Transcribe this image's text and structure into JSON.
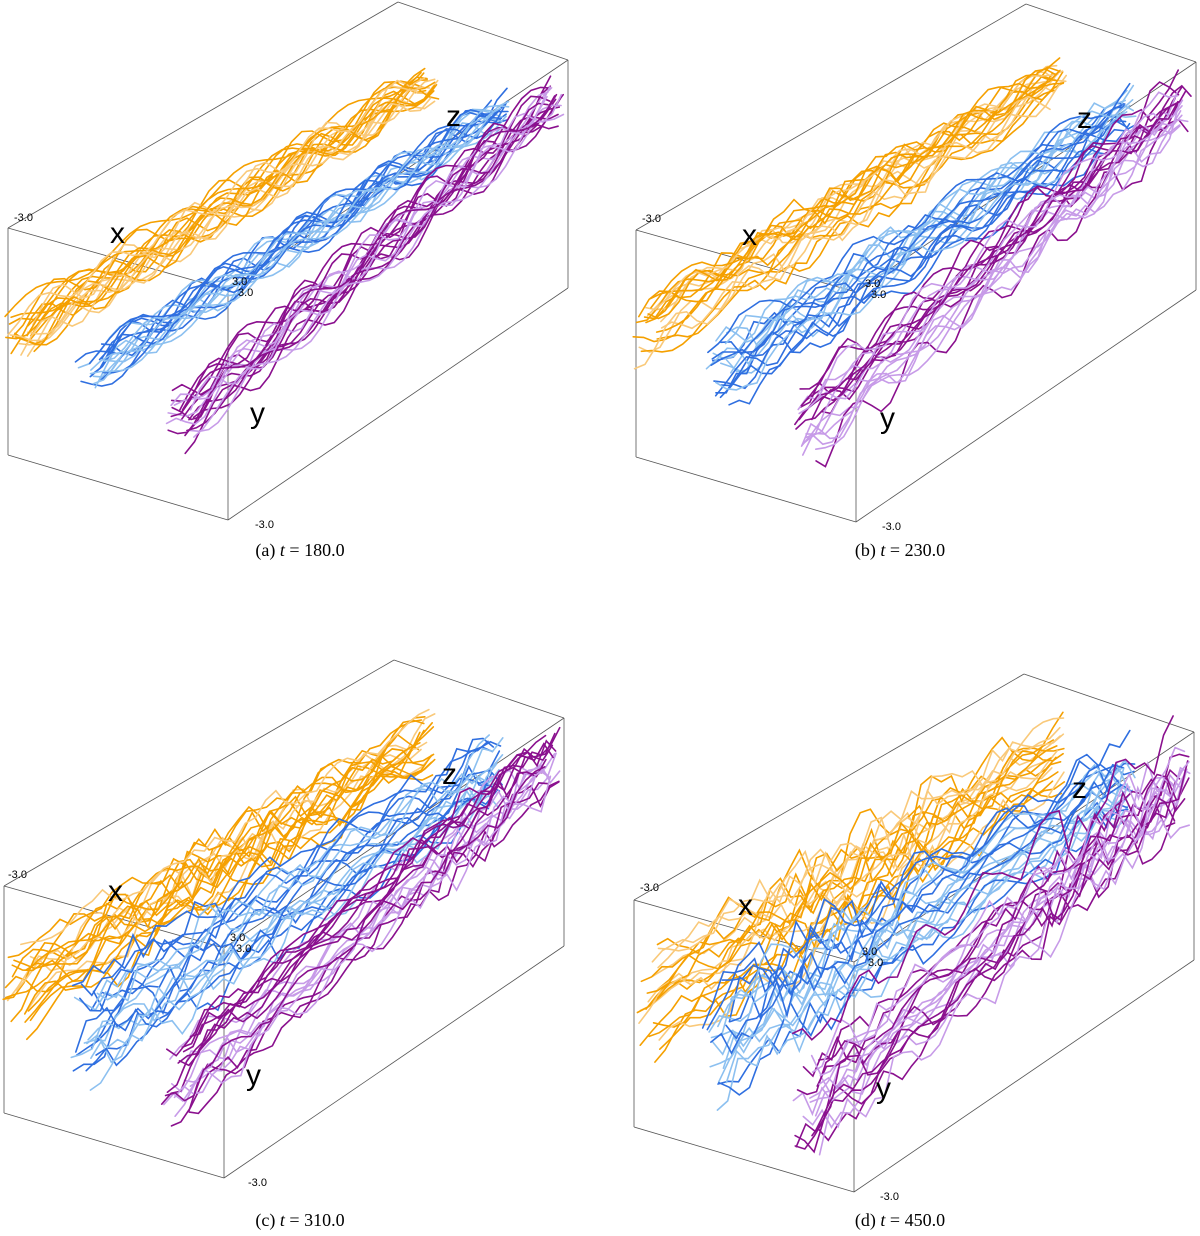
{
  "colors": {
    "orange": "#f5a000",
    "light_orange": "#f9c97a",
    "blue": "#2f6fe0",
    "light_blue": "#8cc0f0",
    "purple": "#8a108e",
    "light_purple": "#c79be8",
    "frame": "#555555"
  },
  "panels": [
    {
      "caption_prefix": "(a)",
      "t_symbol": "t",
      "caption_eq": "=",
      "t_value": "180.0",
      "axis_x": "x",
      "axis_y": "y",
      "axis_z": "z",
      "tick_top": "-3.0",
      "tick_bottom": "-3.0",
      "tick_center_a": "3.0",
      "tick_center_b": "3.0",
      "mixing": 0.0
    },
    {
      "caption_prefix": "(b)",
      "t_symbol": "t",
      "caption_eq": "=",
      "t_value": "230.0",
      "axis_x": "x",
      "axis_y": "y",
      "axis_z": "z",
      "tick_top": "-3.0",
      "tick_bottom": "-3.0",
      "tick_center_a": "3.0",
      "tick_center_b": "3.0",
      "mixing": 0.35
    },
    {
      "caption_prefix": "(c)",
      "t_symbol": "t",
      "caption_eq": "=",
      "t_value": "310.0",
      "axis_x": "x",
      "axis_y": "y",
      "axis_z": "z",
      "tick_top": "-3.0",
      "tick_bottom": "-3.0",
      "tick_center_a": "3.0",
      "tick_center_b": "3.0",
      "mixing": 0.65
    },
    {
      "caption_prefix": "(d)",
      "t_symbol": "t",
      "caption_eq": "=",
      "t_value": "450.0",
      "axis_x": "x",
      "axis_y": "y",
      "axis_z": "z",
      "tick_top": "-3.0",
      "tick_bottom": "-3.0",
      "tick_center_a": "3.0",
      "tick_center_b": "3.0",
      "mixing": 1.0
    }
  ]
}
